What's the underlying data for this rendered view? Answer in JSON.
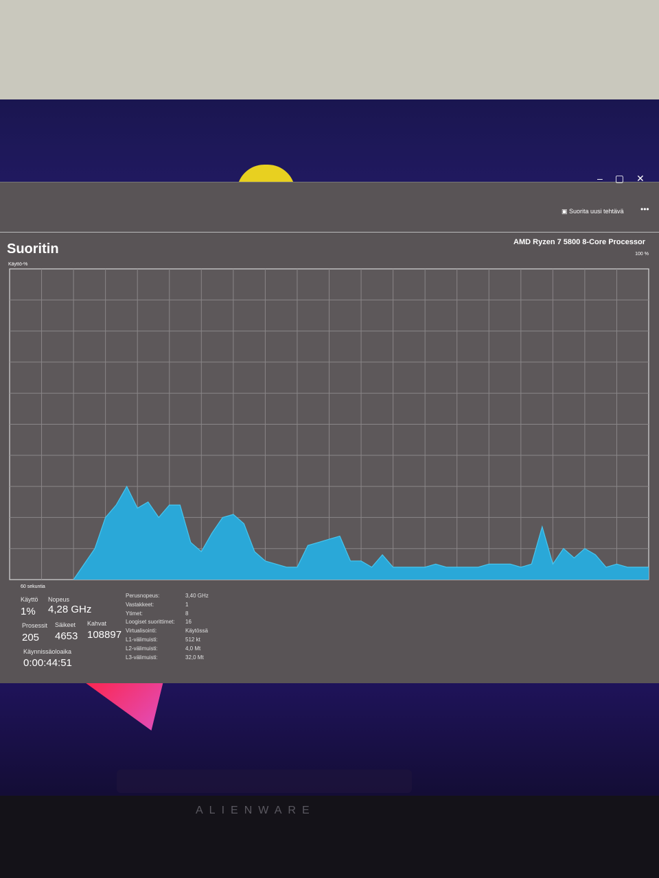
{
  "window": {
    "run_task": "Suorita uusi tehtävä"
  },
  "chart_data": {
    "type": "area",
    "title": "Suoritin",
    "subtitle": "AMD Ryzen 7 5800 8-Core Processor",
    "y_label": "Käyttö-%",
    "x_label": "60 sekuntia",
    "ylim": [
      0,
      100
    ],
    "yticks": [
      {
        "value": 100,
        "label": "100 %"
      }
    ],
    "color": "#2aa8d8",
    "line_color": "#46c6f0",
    "values": [
      null,
      null,
      null,
      null,
      null,
      null,
      0,
      5,
      10,
      20,
      24,
      30,
      23,
      25,
      20,
      24,
      24,
      12,
      9,
      15,
      20,
      21,
      18,
      9,
      6,
      5,
      4,
      4,
      11,
      12,
      13,
      14,
      6,
      6,
      4,
      8,
      4,
      4,
      4,
      4,
      5,
      4,
      4,
      4,
      4,
      5,
      5,
      5,
      4,
      5,
      17,
      5,
      10,
      7,
      10,
      8,
      4,
      5,
      4,
      4,
      4
    ]
  },
  "stats": {
    "utilization": {
      "label": "Käyttö",
      "value": "1%"
    },
    "speed": {
      "label": "Nopeus",
      "value": "4,28 GHz"
    },
    "processes": {
      "label": "Prosessit",
      "value": "205"
    },
    "threads": {
      "label": "Säikeet",
      "value": "4653"
    },
    "handles": {
      "label": "Kahvat",
      "value": "108897"
    },
    "uptime": {
      "label": "Käynnissäoloaika",
      "value": "0:00:44:51"
    },
    "details": [
      {
        "label": "Perusnopeus:",
        "value": "3,40 GHz"
      },
      {
        "label": "Vastakkeet:",
        "value": "1"
      },
      {
        "label": "Ytimet:",
        "value": "8"
      },
      {
        "label": "Loogiset suorittimet:",
        "value": "16"
      },
      {
        "label": "Virtualisointi:",
        "value": "Käytössä"
      },
      {
        "label": "L1-välimuisti:",
        "value": "512 kt"
      },
      {
        "label": "L2-välimuisti:",
        "value": "4,0 Mt"
      },
      {
        "label": "L3-välimuisti:",
        "value": "32,0 Mt"
      }
    ]
  },
  "monitor": {
    "brand": "ALIENWARE"
  }
}
